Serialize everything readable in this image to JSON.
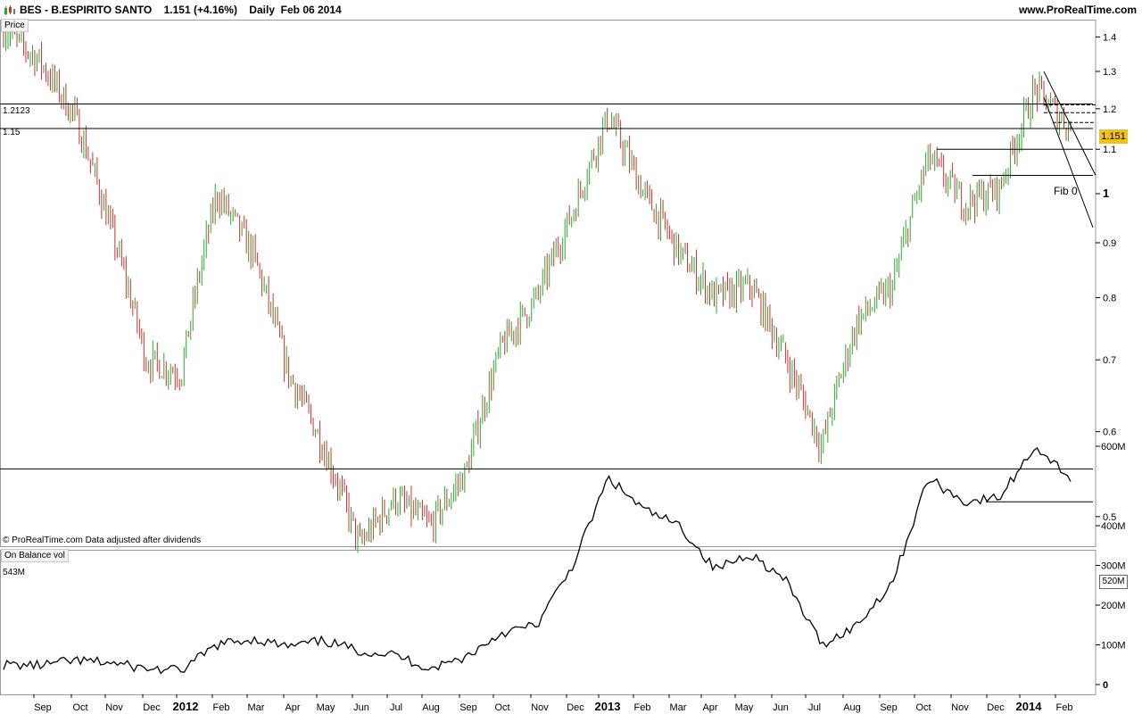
{
  "header": {
    "title": "BES - B.ESPIRITO SANTO    1.151 (+4.16%)    Daily  Feb 06 2014",
    "brand": "www.ProRealTime.com"
  },
  "price_panel": {
    "label": "Price",
    "level_1_label": "1.2123",
    "level_2_label": "1.15",
    "last_price_label": "1.151",
    "fib_label": "Fib 0",
    "copyright": "© ProRealTime.com  Data adjusted after dividends",
    "ticks": [
      "1.4",
      "1.3",
      "1.2",
      "1.1",
      "1",
      "0.9",
      "0.8",
      "0.7",
      "0.6",
      "0.5"
    ]
  },
  "obv_panel": {
    "label": "On Balance vol",
    "level_label": "543M",
    "last_value_label": "520M",
    "ticks": [
      "600M",
      "400M",
      "300M",
      "200M",
      "100M",
      "0"
    ]
  },
  "x_axis": {
    "labels": [
      "Sep",
      "Oct",
      "Nov",
      "Dec",
      "2012",
      "Feb",
      "Mar",
      "Apr",
      "May",
      "Jun",
      "Jul",
      "Aug",
      "Sep",
      "Oct",
      "Nov",
      "Dec",
      "2013",
      "Feb",
      "Mar",
      "Apr",
      "May",
      "Jun",
      "Jul",
      "Aug",
      "Sep",
      "Oct",
      "Nov",
      "Dec",
      "2014",
      "Feb"
    ],
    "bold": [
      "2012",
      "2013",
      "2014"
    ]
  },
  "colors": {
    "up": "#2fa52f",
    "down": "#c83232",
    "line": "#000000",
    "last_price_bg": "#f0c020"
  },
  "chart_data": [
    {
      "type": "bar",
      "subtype": "ohlc-price",
      "title": "BES - B.ESPIRITO SANTO",
      "scale": "log",
      "ylim": [
        0.45,
        1.5
      ],
      "x": [
        "2011-08",
        "2011-09",
        "2011-10",
        "2011-11",
        "2011-12",
        "2012-01",
        "2012-02",
        "2012-03",
        "2012-04",
        "2012-05",
        "2012-06",
        "2012-07",
        "2012-08",
        "2012-09",
        "2012-10",
        "2012-11",
        "2012-12",
        "2013-01",
        "2013-02",
        "2013-03",
        "2013-04",
        "2013-05",
        "2013-06",
        "2013-07",
        "2013-08",
        "2013-09",
        "2013-10",
        "2013-11",
        "2013-12",
        "2014-01",
        "2014-02"
      ],
      "close_approx": [
        1.42,
        1.33,
        1.18,
        0.93,
        0.7,
        0.68,
        1.0,
        0.88,
        0.68,
        0.58,
        0.47,
        0.52,
        0.49,
        0.55,
        0.72,
        0.8,
        0.96,
        1.18,
        1.0,
        0.88,
        0.8,
        0.82,
        0.7,
        0.58,
        0.76,
        0.82,
        1.08,
        0.98,
        1.01,
        1.25,
        1.151
      ],
      "horizontal_levels": [
        1.2123,
        1.15
      ],
      "last": 1.151,
      "change_pct": 4.16
    },
    {
      "type": "line",
      "title": "On Balance vol",
      "ylim": [
        0,
        700
      ],
      "y_unit": "M",
      "x": [
        "2011-08",
        "2011-09",
        "2011-10",
        "2011-11",
        "2011-12",
        "2012-01",
        "2012-02",
        "2012-03",
        "2012-04",
        "2012-05",
        "2012-06",
        "2012-07",
        "2012-08",
        "2012-09",
        "2012-10",
        "2012-11",
        "2012-12",
        "2013-01",
        "2013-02",
        "2013-03",
        "2013-04",
        "2013-05",
        "2013-06",
        "2013-07",
        "2013-08",
        "2013-09",
        "2013-10",
        "2013-11",
        "2013-12",
        "2014-01",
        "2014-02"
      ],
      "values": [
        50,
        48,
        60,
        55,
        40,
        35,
        100,
        115,
        95,
        110,
        85,
        75,
        40,
        70,
        130,
        150,
        300,
        520,
        440,
        400,
        290,
        330,
        260,
        100,
        150,
        260,
        520,
        460,
        470,
        600,
        520
      ],
      "horizontal_level": 543,
      "last": 520
    }
  ]
}
